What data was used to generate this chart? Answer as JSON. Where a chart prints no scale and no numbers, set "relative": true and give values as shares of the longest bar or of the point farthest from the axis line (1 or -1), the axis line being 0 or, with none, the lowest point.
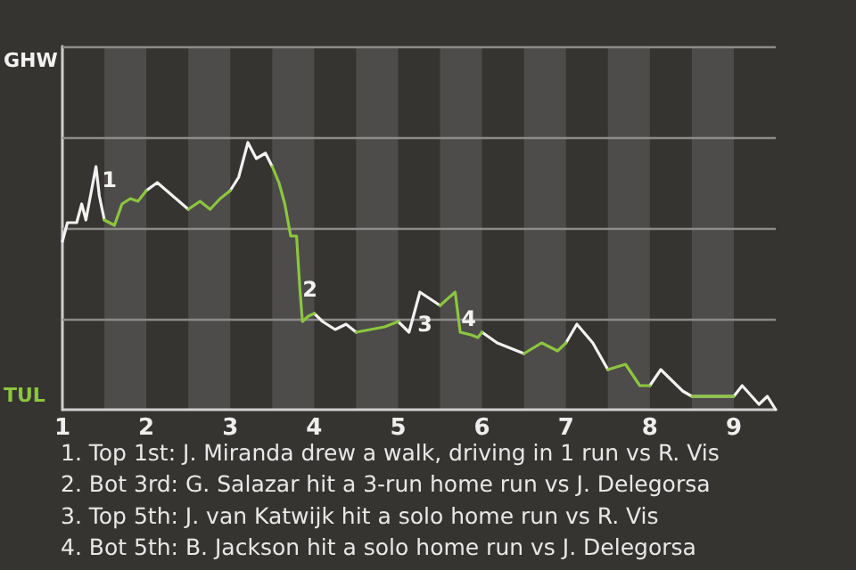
{
  "chart_data": {
    "type": "line",
    "relative": true,
    "x": [
      1.0,
      1.06,
      1.17,
      1.23,
      1.28,
      1.4,
      1.44,
      1.5,
      1.62,
      1.71,
      1.81,
      1.9,
      2.0,
      2.13,
      2.5,
      2.64,
      2.76,
      2.88,
      3.0,
      3.1,
      3.21,
      3.31,
      3.42,
      3.5,
      3.58,
      3.65,
      3.72,
      3.79,
      3.83,
      3.86,
      3.93,
      4.0,
      4.1,
      4.25,
      4.38,
      4.5,
      4.84,
      5.0,
      5.13,
      5.26,
      5.5,
      5.68,
      5.74,
      5.87,
      5.95,
      6.0,
      6.18,
      6.5,
      6.71,
      6.9,
      7.0,
      7.13,
      7.32,
      7.5,
      7.71,
      7.88,
      8.0,
      8.13,
      8.39,
      8.5,
      9.0,
      9.1,
      9.3,
      9.4,
      9.5
    ],
    "series": [
      {
        "color": "#f2f2f2",
        "values": [
          0.63,
          0.7,
          0.7,
          0.77,
          0.71,
          0.91,
          0.8,
          0.71,
          null,
          null,
          null,
          null,
          0.82,
          0.85,
          0.75,
          null,
          null,
          null,
          0.82,
          0.87,
          1.0,
          0.94,
          0.96,
          0.91,
          null,
          null,
          null,
          null,
          null,
          null,
          null,
          0.36,
          0.33,
          0.3,
          0.32,
          0.29,
          null,
          0.33,
          0.29,
          0.44,
          0.39,
          null,
          null,
          null,
          null,
          0.29,
          0.25,
          0.21,
          null,
          null,
          0.25,
          0.32,
          0.25,
          0.15,
          null,
          null,
          0.09,
          0.15,
          0.07,
          0.05,
          0.05,
          0.09,
          0.02,
          0.05,
          0
        ]
      },
      {
        "color": "#8cc63f",
        "values": [
          null,
          null,
          null,
          null,
          null,
          null,
          null,
          0.71,
          0.69,
          0.77,
          0.79,
          0.78,
          0.82,
          null,
          0.75,
          0.78,
          0.75,
          0.79,
          0.82,
          null,
          null,
          null,
          null,
          0.91,
          0.85,
          0.77,
          0.65,
          0.65,
          0.45,
          0.33,
          0.35,
          0.36,
          null,
          null,
          null,
          0.29,
          0.31,
          0.33,
          null,
          null,
          0.39,
          0.44,
          0.29,
          0.28,
          0.27,
          0.29,
          null,
          0.21,
          0.25,
          0.22,
          0.25,
          null,
          null,
          0.15,
          0.17,
          0.09,
          0.09,
          null,
          null,
          0.05,
          0.05,
          null,
          null,
          null,
          null
        ]
      }
    ],
    "xlim": [
      1,
      9.5
    ],
    "xticks": [
      1,
      2,
      3,
      4,
      5,
      6,
      7,
      8,
      9
    ],
    "bands": [
      {
        "axis": "x",
        "from": 1.5,
        "to": 2,
        "color": "#4d4c4a"
      },
      {
        "axis": "x",
        "from": 2.5,
        "to": 3,
        "color": "#4d4c4a"
      },
      {
        "axis": "x",
        "from": 3.5,
        "to": 4,
        "color": "#4d4c4a"
      },
      {
        "axis": "x",
        "from": 4.5,
        "to": 5,
        "color": "#4d4c4a"
      },
      {
        "axis": "x",
        "from": 5.5,
        "to": 6,
        "color": "#4d4c4a"
      },
      {
        "axis": "x",
        "from": 6.5,
        "to": 7,
        "color": "#4d4c4a"
      },
      {
        "axis": "x",
        "from": 7.5,
        "to": 8,
        "color": "#4d4c4a"
      },
      {
        "axis": "x",
        "from": 8.5,
        "to": 9,
        "color": "#4d4c4a"
      }
    ],
    "ref_lines": [
      {
        "axis": "y",
        "value": 0.34,
        "color": "#8c8b89"
      },
      {
        "axis": "y",
        "value": 0.68,
        "color": "#8c8b89"
      },
      {
        "axis": "y",
        "value": 1.02,
        "color": "#8c8b89"
      },
      {
        "axis": "y",
        "value": 1.36,
        "color": "#8c8b89"
      }
    ],
    "annotations": [
      "GHW",
      "TUL",
      {
        "text": "1",
        "x": 1.56,
        "y": 0.86
      },
      {
        "text": "2",
        "x": 3.95,
        "y": 0.45
      },
      {
        "text": "3",
        "x": 5.32,
        "y": 0.32
      },
      {
        "text": "4",
        "x": 5.84,
        "y": 0.34
      },
      "1. Top 1st: J. Miranda drew a walk, driving in 1 run vs R. Vis",
      "2. Bot 3rd: G. Salazar hit a 3-run home run vs J. Delegorsa",
      "3. Top 5th: J. van Katwijk hit a solo home run vs R. Vis",
      "4. Bot 5th: B. Jackson hit a solo home run vs J. Delegorsa"
    ],
    "marker": "none",
    "line_style": "solid"
  }
}
